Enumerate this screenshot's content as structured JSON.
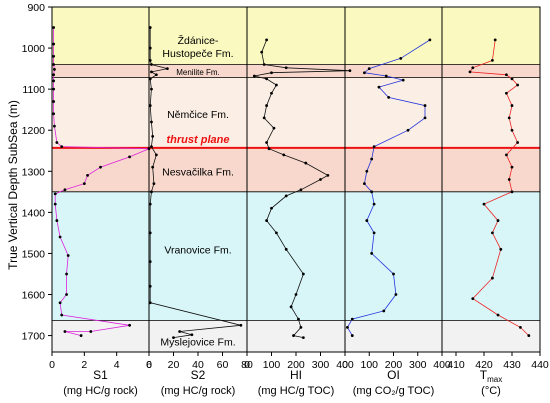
{
  "chart_data": {
    "type": "line",
    "y_axis": {
      "label": "True Vertical Depth SubSea (m)",
      "range": [
        900,
        1740
      ],
      "ticks": [
        900,
        1000,
        1100,
        1200,
        1300,
        1400,
        1500,
        1600,
        1700
      ],
      "inverted": true
    },
    "zones": [
      {
        "top": 900,
        "bottom": 1040,
        "color": "#fafac0"
      },
      {
        "top": 1040,
        "bottom": 1072,
        "color": "#f8d8cc"
      },
      {
        "top": 1072,
        "bottom": 1243,
        "color": "#fbeee4"
      },
      {
        "top": 1243,
        "bottom": 1350,
        "color": "#f8d8cc"
      },
      {
        "top": 1350,
        "bottom": 1663,
        "color": "#d8f6f8"
      },
      {
        "top": 1663,
        "bottom": 1740,
        "color": "#f2f2f2"
      }
    ],
    "boundaries": [
      1040,
      1072,
      1350,
      1663
    ],
    "thrust": {
      "depth": 1243,
      "label": "thrust plane",
      "color": "#ee1111"
    },
    "formations": [
      {
        "lines": [
          "Ždánice-",
          "Hustopeče Fm."
        ],
        "depth": [
          980,
          1012
        ],
        "small": false
      },
      {
        "lines": [
          "Menilite Fm."
        ],
        "depth": [
          1056
        ],
        "small": true
      },
      {
        "lines": [
          "Němčice Fm."
        ],
        "depth": [
          1160
        ],
        "small": false
      },
      {
        "lines": [
          "Nesvačilka Fm."
        ],
        "depth": [
          1300
        ],
        "small": false
      },
      {
        "lines": [
          "Vranovice Fm."
        ],
        "depth": [
          1490
        ],
        "small": false
      },
      {
        "lines": [
          "Myslejovice Fm."
        ],
        "depth": [
          1715
        ],
        "small": false
      }
    ],
    "panels": [
      {
        "id": "s1",
        "color": "#dd22dd",
        "xlim": [
          0,
          6
        ],
        "ticks": [
          0,
          2,
          4,
          6
        ],
        "label_line1": "S1",
        "label_line2": "(mg HC/g rock)",
        "points": [
          [
            0.1,
            950
          ],
          [
            0.1,
            990
          ],
          [
            0.1,
            1020
          ],
          [
            0.1,
            1040
          ],
          [
            0.15,
            1052
          ],
          [
            0.1,
            1065
          ],
          [
            0.1,
            1080
          ],
          [
            0.1,
            1100
          ],
          [
            0.1,
            1130
          ],
          [
            0.1,
            1160
          ],
          [
            0.15,
            1190
          ],
          [
            0.3,
            1230
          ],
          [
            0.6,
            1240
          ],
          [
            6.0,
            1245
          ],
          [
            4.8,
            1265
          ],
          [
            3.0,
            1290
          ],
          [
            2.2,
            1310
          ],
          [
            2.0,
            1330
          ],
          [
            0.8,
            1345
          ],
          [
            0.2,
            1355
          ],
          [
            0.2,
            1380
          ],
          [
            0.3,
            1420
          ],
          [
            0.5,
            1460
          ],
          [
            1.0,
            1505
          ],
          [
            0.9,
            1550
          ],
          [
            0.9,
            1600
          ],
          [
            0.5,
            1620
          ],
          [
            0.6,
            1650
          ],
          [
            4.8,
            1675
          ],
          [
            2.4,
            1690
          ],
          [
            0.8,
            1690
          ],
          [
            1.8,
            1700
          ]
        ]
      },
      {
        "id": "s2",
        "color": "#111111",
        "xlim": [
          0,
          80
        ],
        "ticks": [
          0,
          20,
          40,
          60,
          80
        ],
        "label_line1": "S2",
        "label_line2": "(mg HC/g rock)",
        "points": [
          [
            1,
            950
          ],
          [
            1,
            1000
          ],
          [
            1,
            1030
          ],
          [
            2,
            1040
          ],
          [
            15,
            1050
          ],
          [
            2,
            1058
          ],
          [
            6,
            1065
          ],
          [
            1,
            1075
          ],
          [
            2,
            1100
          ],
          [
            1,
            1140
          ],
          [
            2,
            1180
          ],
          [
            3,
            1215
          ],
          [
            2,
            1240
          ],
          [
            6,
            1260
          ],
          [
            3,
            1290
          ],
          [
            4,
            1330
          ],
          [
            2,
            1350
          ],
          [
            1,
            1380
          ],
          [
            1,
            1450
          ],
          [
            1,
            1520
          ],
          [
            1,
            1580
          ],
          [
            1,
            1620
          ],
          [
            75,
            1675
          ],
          [
            25,
            1690
          ],
          [
            35,
            1698
          ],
          [
            20,
            1705
          ]
        ]
      },
      {
        "id": "hi",
        "color": "#111111",
        "xlim": [
          0,
          400
        ],
        "ticks": [
          0,
          100,
          200,
          300,
          400
        ],
        "label_line1": "HI",
        "label_line2": "(mg HC/g TOC)",
        "points": [
          [
            80,
            980
          ],
          [
            60,
            1010
          ],
          [
            70,
            1040
          ],
          [
            160,
            1048
          ],
          [
            420,
            1055
          ],
          [
            100,
            1060
          ],
          [
            30,
            1068
          ],
          [
            80,
            1075
          ],
          [
            120,
            1090
          ],
          [
            100,
            1110
          ],
          [
            80,
            1140
          ],
          [
            70,
            1170
          ],
          [
            110,
            1195
          ],
          [
            80,
            1230
          ],
          [
            90,
            1245
          ],
          [
            150,
            1260
          ],
          [
            240,
            1280
          ],
          [
            330,
            1310
          ],
          [
            300,
            1320
          ],
          [
            220,
            1345
          ],
          [
            160,
            1360
          ],
          [
            100,
            1390
          ],
          [
            80,
            1420
          ],
          [
            120,
            1450
          ],
          [
            160,
            1490
          ],
          [
            230,
            1550
          ],
          [
            200,
            1600
          ],
          [
            180,
            1630
          ],
          [
            210,
            1660
          ],
          [
            220,
            1680
          ],
          [
            190,
            1700
          ],
          [
            230,
            1705
          ]
        ]
      },
      {
        "id": "oi",
        "color": "#2233dd",
        "xlim": [
          0,
          400
        ],
        "ticks": [
          0,
          100,
          200,
          300,
          400
        ],
        "label_line1": "OI",
        "label_line2": "(mg CO₂/g TOC)",
        "points": [
          [
            350,
            980
          ],
          [
            230,
            1025
          ],
          [
            100,
            1050
          ],
          [
            80,
            1060
          ],
          [
            170,
            1068
          ],
          [
            240,
            1078
          ],
          [
            140,
            1095
          ],
          [
            180,
            1120
          ],
          [
            330,
            1140
          ],
          [
            330,
            1170
          ],
          [
            260,
            1200
          ],
          [
            120,
            1240
          ],
          [
            110,
            1270
          ],
          [
            90,
            1300
          ],
          [
            80,
            1330
          ],
          [
            110,
            1350
          ],
          [
            120,
            1380
          ],
          [
            90,
            1420
          ],
          [
            120,
            1450
          ],
          [
            110,
            1500
          ],
          [
            200,
            1550
          ],
          [
            210,
            1600
          ],
          [
            160,
            1640
          ],
          [
            30,
            1660
          ],
          [
            10,
            1680
          ],
          [
            30,
            1700
          ]
        ]
      },
      {
        "id": "tmax",
        "color": "#ee2222",
        "xlim": [
          405,
          440
        ],
        "ticks": [
          410,
          420,
          430,
          440
        ],
        "label_line1": "T",
        "label_sub": "max",
        "label_line2": "(°C)",
        "points": [
          [
            424,
            980
          ],
          [
            423,
            1030
          ],
          [
            416,
            1048
          ],
          [
            415,
            1058
          ],
          [
            428,
            1065
          ],
          [
            430,
            1075
          ],
          [
            432,
            1090
          ],
          [
            428,
            1110
          ],
          [
            430,
            1140
          ],
          [
            429,
            1170
          ],
          [
            430,
            1200
          ],
          [
            432,
            1230
          ],
          [
            428,
            1260
          ],
          [
            430,
            1290
          ],
          [
            429,
            1320
          ],
          [
            430,
            1350
          ],
          [
            420,
            1380
          ],
          [
            425,
            1420
          ],
          [
            423,
            1450
          ],
          [
            426,
            1490
          ],
          [
            423,
            1560
          ],
          [
            416,
            1610
          ],
          [
            425,
            1650
          ],
          [
            433,
            1680
          ],
          [
            436,
            1700
          ]
        ]
      }
    ]
  }
}
